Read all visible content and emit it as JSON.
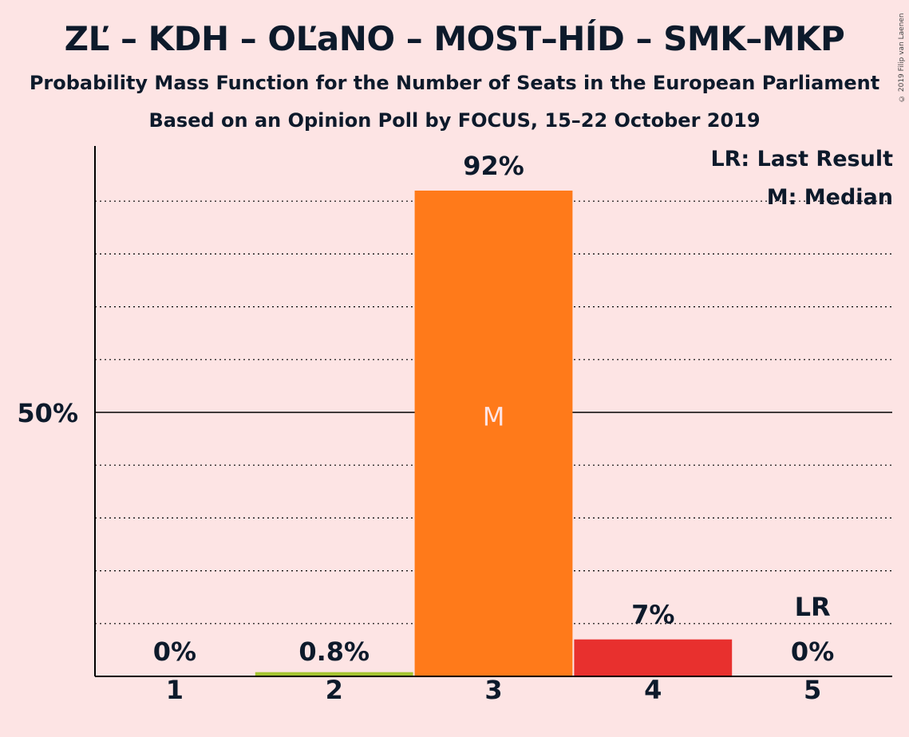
{
  "title": "ZĽ – KDH – OĽaNO – MOST–HÍD – SMK–MKP",
  "subtitle": "Probability Mass Function for the Number of Seats in the European Parliament",
  "subtitle2": "Based on an Opinion Poll by FOCUS, 15–22 October 2019",
  "copyright": "© 2019 Filip van Laenen",
  "legend": {
    "last_result": "LR: Last Result",
    "median": "M: Median"
  },
  "chart_data": {
    "type": "bar",
    "categories": [
      "1",
      "2",
      "3",
      "4",
      "5"
    ],
    "values": [
      0,
      0.8,
      92,
      7,
      0
    ],
    "value_labels": [
      "0%",
      "0.8%",
      "92%",
      "7%",
      "0%"
    ],
    "colors": [
      "#a6c531",
      "#a6c531",
      "#ff7a1a",
      "#e8302e",
      "#a6c531"
    ],
    "median_category": "3",
    "median_marker": "M",
    "last_result_category": "5",
    "last_result_marker": "LR",
    "ytick_label": "50%",
    "ylim": [
      0,
      100
    ],
    "grid": "dotted every 10%"
  }
}
